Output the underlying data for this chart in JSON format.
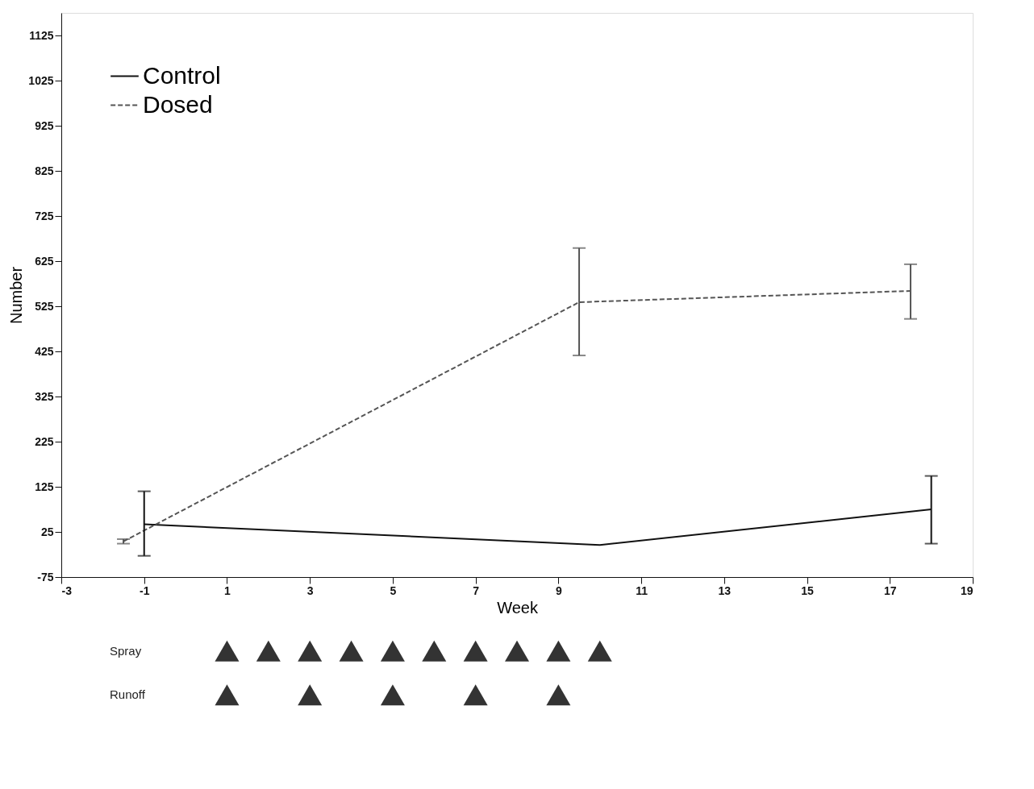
{
  "chart_data": {
    "type": "line",
    "xlabel": "Week",
    "ylabel": "Number",
    "xlim": [
      -3,
      19
    ],
    "xticks": [
      -3,
      -1,
      1,
      3,
      5,
      7,
      9,
      11,
      13,
      15,
      17,
      19
    ],
    "ylim": [
      -75,
      1175
    ],
    "yticks": [
      -75,
      25,
      125,
      225,
      325,
      425,
      525,
      625,
      725,
      825,
      925,
      1025,
      1125
    ],
    "grid": false,
    "legend": "top left",
    "annotations": [
      "Spray",
      "Runoff"
    ],
    "series": [
      {
        "name": "Control",
        "color": "#111111",
        "line_style": "solid",
        "x": [
          -1,
          10,
          18
        ],
        "values": [
          42,
          -4,
          75
        ],
        "errors": [
          [
            -28,
            115
          ],
          null,
          [
            -1,
            149
          ]
        ]
      },
      {
        "name": "Dosed",
        "color": "#555555",
        "line_style": "dashed",
        "x": [
          -1.5,
          9.5,
          17.5
        ],
        "values": [
          4,
          534,
          559
        ],
        "errors": [
          [
            -1,
            9
          ],
          [
            416,
            654
          ],
          [
            497,
            618
          ]
        ]
      }
    ]
  }
}
